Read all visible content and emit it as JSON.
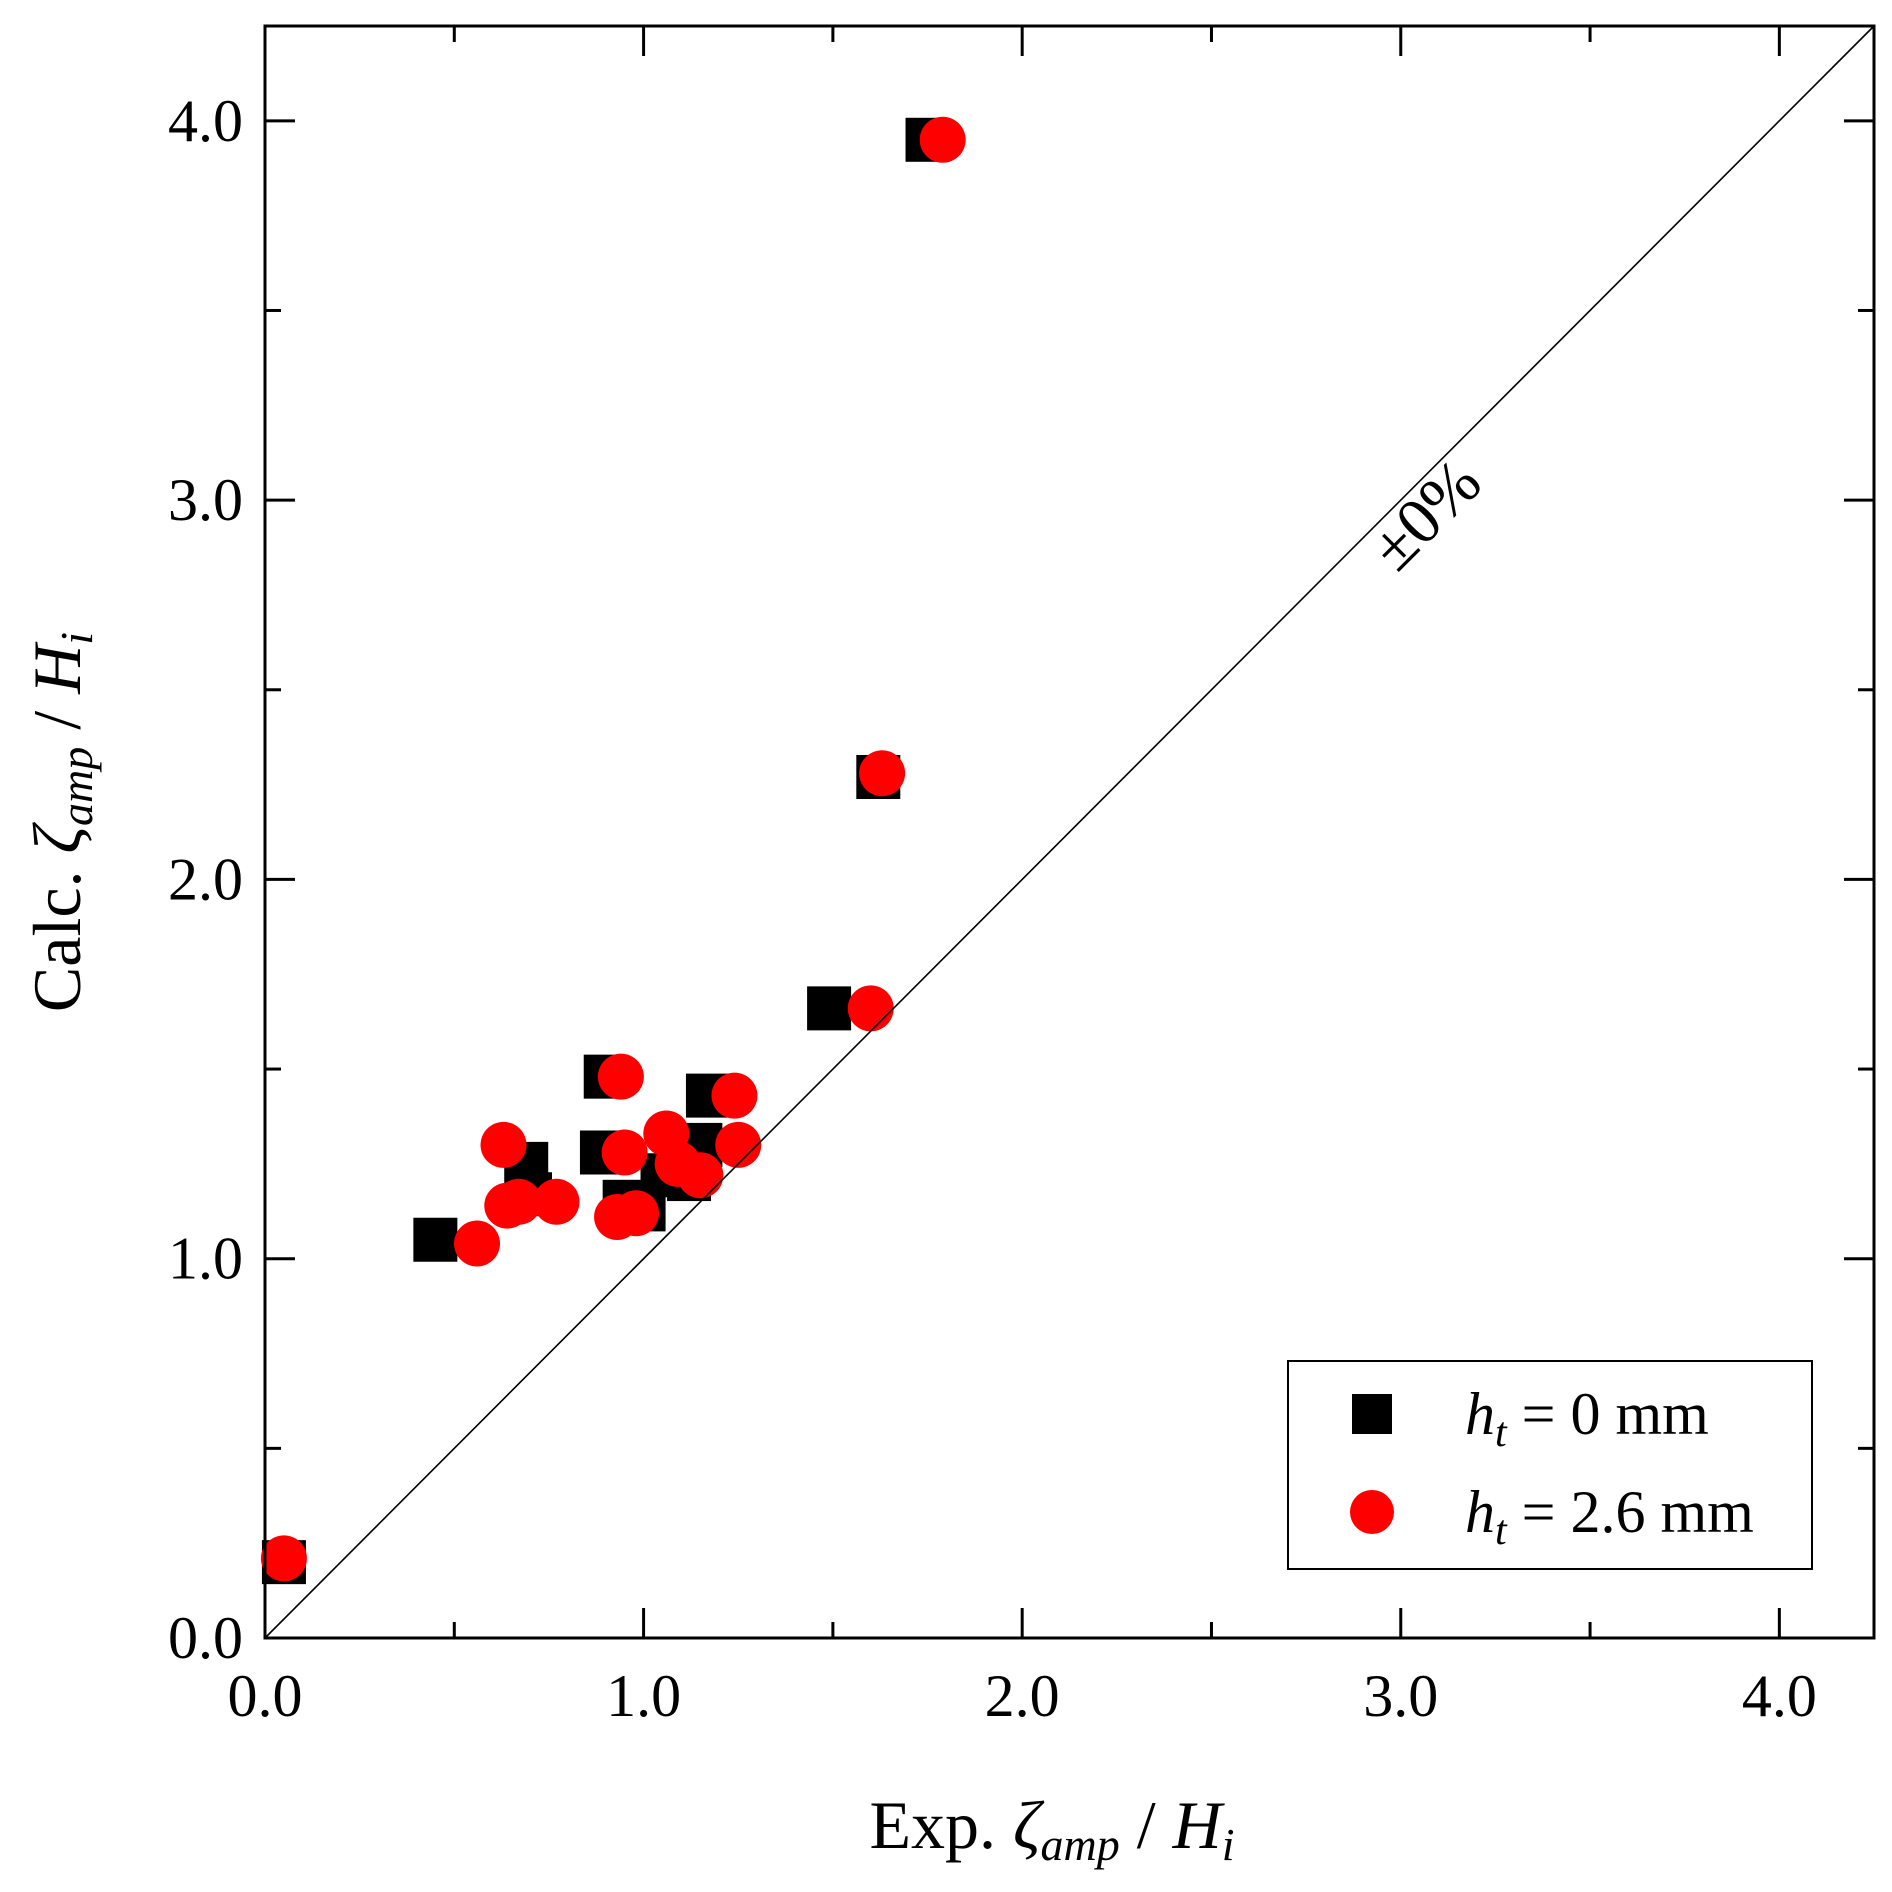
{
  "chart_data": {
    "type": "scatter",
    "title": "",
    "xlabel": {
      "main": "Exp. ",
      "sym": "ζ",
      "sub": "amp",
      "sep": " / ",
      "var": "H",
      "var_sub": "i"
    },
    "ylabel": {
      "main": "Calc. ",
      "sym": "ζ",
      "sub": "amp",
      "sep": " / ",
      "var": "H",
      "var_sub": "i"
    },
    "xlim": [
      0,
      4.25
    ],
    "ylim": [
      0,
      4.25
    ],
    "xticks": [
      0,
      1,
      2,
      3,
      4
    ],
    "yticks": [
      0,
      1,
      2,
      3,
      4
    ],
    "xticklabels": [
      "0.0",
      "1.0",
      "2.0",
      "3.0",
      "4.0"
    ],
    "yticklabels": [
      "0.0",
      "1.0",
      "2.0",
      "3.0",
      "4.0"
    ],
    "minor_step": 0.5,
    "grid": false,
    "legend_position": "bottom-right",
    "reference_line": {
      "label": "±0%",
      "from": [
        0,
        0
      ],
      "to": [
        4.25,
        4.25
      ]
    },
    "series": [
      {
        "name": "h_t = 0 mm",
        "legend": {
          "var": "h",
          "sub": "t",
          "rest": " = 0 mm"
        },
        "marker": "square",
        "color": "#000000",
        "points": [
          [
            0.05,
            0.2
          ],
          [
            0.45,
            1.05
          ],
          [
            0.69,
            1.25
          ],
          [
            0.7,
            1.17
          ],
          [
            0.9,
            1.48
          ],
          [
            0.89,
            1.28
          ],
          [
            0.95,
            1.15
          ],
          [
            0.96,
            1.13
          ],
          [
            1.0,
            1.13
          ],
          [
            1.05,
            1.22
          ],
          [
            1.12,
            1.21
          ],
          [
            1.15,
            1.3
          ],
          [
            1.17,
            1.43
          ],
          [
            1.49,
            1.66
          ],
          [
            1.62,
            2.27
          ],
          [
            1.75,
            3.95
          ]
        ]
      },
      {
        "name": "h_t = 2.6 mm",
        "legend": {
          "var": "h",
          "sub": "t",
          "rest": " = 2.6 mm"
        },
        "marker": "circle",
        "color": "#ff0000",
        "points": [
          [
            0.05,
            0.21
          ],
          [
            0.56,
            1.04
          ],
          [
            0.63,
            1.3
          ],
          [
            0.64,
            1.14
          ],
          [
            0.67,
            1.15
          ],
          [
            0.77,
            1.15
          ],
          [
            0.93,
            1.11
          ],
          [
            0.94,
            1.48
          ],
          [
            0.95,
            1.28
          ],
          [
            0.98,
            1.12
          ],
          [
            1.06,
            1.33
          ],
          [
            1.09,
            1.25
          ],
          [
            1.15,
            1.22
          ],
          [
            1.24,
            1.43
          ],
          [
            1.25,
            1.3
          ],
          [
            1.6,
            1.66
          ],
          [
            1.63,
            2.28
          ],
          [
            1.79,
            3.95
          ]
        ]
      }
    ]
  }
}
